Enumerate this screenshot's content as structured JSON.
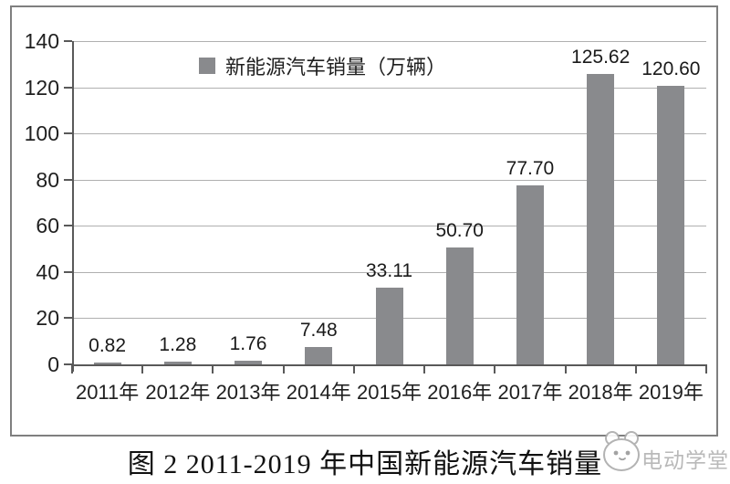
{
  "chart_style": {
    "bar_color": "#898a8d",
    "grid_color": "#b0b0b0",
    "axis_color": "#595959",
    "frame_border_color": "#7f7f7f",
    "text_color": "#1f1f1f",
    "watermark_color": "#b9b9b9"
  },
  "chart_data": {
    "type": "bar",
    "title": "图 2  2011-2019 年中国新能源汽车销量",
    "legend": [
      "新能源汽车销量（万辆）"
    ],
    "legend_position": "top-center",
    "categories": [
      "2011年",
      "2012年",
      "2013年",
      "2014年",
      "2015年",
      "2016年",
      "2017年",
      "2018年",
      "2019年"
    ],
    "values": [
      0.82,
      1.28,
      1.76,
      7.48,
      33.11,
      50.7,
      77.7,
      125.62,
      120.6
    ],
    "value_labels": [
      "0.82",
      "1.28",
      "1.76",
      "7.48",
      "33.11",
      "50.70",
      "77.70",
      "125.62",
      "120.60"
    ],
    "ylabel": "",
    "xlabel": "",
    "ylim": [
      0,
      140
    ],
    "y_tick_step": 20,
    "y_tick_labels": [
      "0",
      "20",
      "40",
      "60",
      "80",
      "100",
      "120",
      "140"
    ],
    "grid": true
  },
  "caption": {
    "text": "图 2  2011-2019 年中国新能源汽车销量"
  },
  "watermark": {
    "text": "电动学堂",
    "logo": "mascot-face-logo"
  }
}
